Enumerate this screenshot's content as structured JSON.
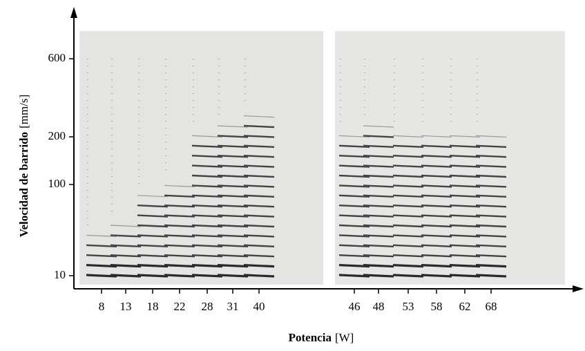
{
  "y_axis": {
    "title": "Velocidad de barrido",
    "unit": "[mm/s]",
    "ticks": [
      "600",
      "200",
      "100",
      "10"
    ]
  },
  "x_axis": {
    "title": "Potencia",
    "unit": "[W]",
    "ticks": [
      "8",
      "13",
      "18",
      "22",
      "28",
      "31",
      "40",
      "46",
      "48",
      "53",
      "58",
      "62",
      "68"
    ]
  }
}
